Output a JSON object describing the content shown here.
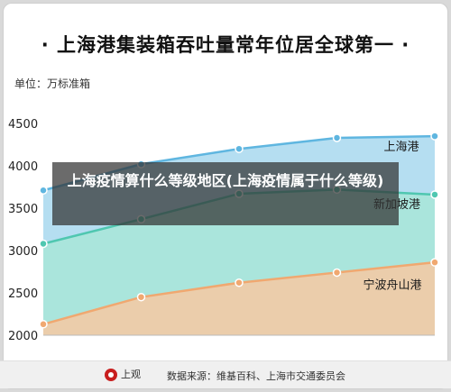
{
  "title": "· 上海港集装箱吞吐量常年位居全球第一 ·",
  "unit_label": "单位：万标准箱",
  "overlay_text": "上海疫情算什么等级地区(上海疫情属于什么等级)",
  "footer": {
    "logo_text": "上观",
    "source": "数据来源：维基百科、上海市交通委员会"
  },
  "colors": {
    "shanghai_fill": "#a8d8ee",
    "shanghai_line": "#5fb6e0",
    "singapore_fill": "#a8e6d8",
    "singapore_line": "#4fc7b0",
    "ningbo_fill": "#f7c9a2",
    "ningbo_line": "#f0a870"
  },
  "chart_data": {
    "type": "area",
    "title": "· 上海港集装箱吞吐量常年位居全球第一 ·",
    "ylabel": "单位：万标准箱",
    "ylim": [
      2000,
      4500
    ],
    "yticks": [
      2000,
      2500,
      3000,
      3500,
      4000,
      4500
    ],
    "grid": false,
    "series": [
      {
        "name": "上海港",
        "values": [
          3710,
          4020,
          4200,
          4330,
          4350
        ]
      },
      {
        "name": "新加坡港",
        "values": [
          3080,
          3370,
          3670,
          3720,
          3660
        ]
      },
      {
        "name": "宁波舟山港",
        "values": [
          2130,
          2450,
          2620,
          2740,
          2860
        ]
      }
    ]
  }
}
